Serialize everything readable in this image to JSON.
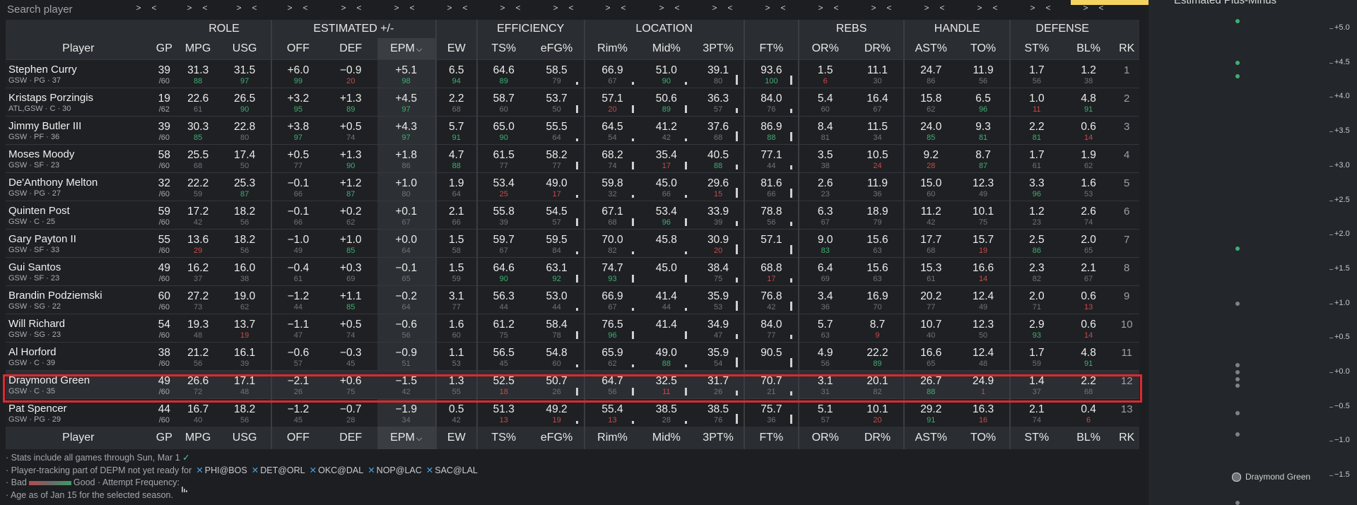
{
  "search": {
    "placeholder": "Search player"
  },
  "groups": {
    "role": "ROLE",
    "est": "ESTIMATED +/-",
    "eff": "EFFICIENCY",
    "loc": "LOCATION",
    "rebs": "REBS",
    "handle": "HANDLE",
    "def": "DEFENSE"
  },
  "headers": {
    "player": "Player",
    "gp": "GP",
    "mpg": "MPG",
    "usg": "USG",
    "off": "OFF",
    "def": "DEF",
    "epm": "EPM",
    "ew": "EW",
    "ts": "TS%",
    "efg": "eFG%",
    "rim": "Rim%",
    "mid": "Mid%",
    "three": "3PT%",
    "ft": "FT%",
    "or": "OR%",
    "dr": "DR%",
    "ast": "AST%",
    "to": "TO%",
    "st": "ST%",
    "bl": "BL%",
    "rk": "RK"
  },
  "sort_arrow": "⌵",
  "nav_arrows": [
    ">",
    "<"
  ],
  "colors": {
    "good": "#3fae72",
    "bad": "#c84a4a",
    "neutral": "#6f7478",
    "highlight": "#e0282e"
  },
  "players": [
    {
      "name": "Stephen Curry",
      "meta": "GSW · PG · 37",
      "gp": "39",
      "per": "/60",
      "mpg": [
        "31.3",
        "88",
        "g"
      ],
      "usg": [
        "31.5",
        "97",
        "g"
      ],
      "off": [
        "+6.0",
        "99",
        "g"
      ],
      "def": [
        "−0.9",
        "20",
        "b"
      ],
      "epm": [
        "+5.1",
        "98",
        "g"
      ],
      "ew": [
        "6.5",
        "94",
        "g"
      ],
      "ts": [
        "64.6",
        "89",
        "g"
      ],
      "efg": [
        "58.5",
        "79",
        "n"
      ],
      "rim": [
        "66.9",
        "67",
        "n"
      ],
      "mid": [
        "51.0",
        "90",
        "g"
      ],
      "three": [
        "39.1",
        "80",
        "n"
      ],
      "ft": [
        "93.6",
        "100",
        "g"
      ],
      "or": [
        "1.5",
        "6",
        "b"
      ],
      "dr": [
        "11.1",
        "30",
        "n"
      ],
      "ast": [
        "24.7",
        "86",
        "n"
      ],
      "to": [
        "11.9",
        "56",
        "n"
      ],
      "st": [
        "1.7",
        "56",
        "n"
      ],
      "bl": [
        "1.2",
        "38",
        "n"
      ],
      "rk": "1"
    },
    {
      "name": "Kristaps Porzingis",
      "meta": "ATL,GSW · C · 30",
      "gp": "19",
      "per": "/62",
      "mpg": [
        "22.6",
        "61",
        "n"
      ],
      "usg": [
        "26.5",
        "90",
        "g"
      ],
      "off": [
        "+3.2",
        "95",
        "g"
      ],
      "def": [
        "+1.3",
        "89",
        "g"
      ],
      "epm": [
        "+4.5",
        "97",
        "g"
      ],
      "ew": [
        "2.2",
        "68",
        "n"
      ],
      "ts": [
        "58.7",
        "60",
        "n"
      ],
      "efg": [
        "53.7",
        "50",
        "n"
      ],
      "rim": [
        "57.1",
        "20",
        "b"
      ],
      "mid": [
        "50.6",
        "89",
        "g"
      ],
      "three": [
        "36.3",
        "57",
        "n"
      ],
      "ft": [
        "84.0",
        "76",
        "n"
      ],
      "or": [
        "5.4",
        "60",
        "n"
      ],
      "dr": [
        "16.4",
        "67",
        "n"
      ],
      "ast": [
        "15.8",
        "62",
        "n"
      ],
      "to": [
        "6.5",
        "96",
        "g"
      ],
      "st": [
        "1.0",
        "11",
        "b"
      ],
      "bl": [
        "4.8",
        "91",
        "g"
      ],
      "rk": "2"
    },
    {
      "name": "Jimmy Butler III",
      "meta": "GSW · PF · 36",
      "gp": "39",
      "per": "/60",
      "mpg": [
        "30.3",
        "85",
        "g"
      ],
      "usg": [
        "22.8",
        "80",
        "n"
      ],
      "off": [
        "+3.8",
        "97",
        "g"
      ],
      "def": [
        "+0.5",
        "74",
        "n"
      ],
      "epm": [
        "+4.3",
        "97",
        "g"
      ],
      "ew": [
        "5.7",
        "91",
        "g"
      ],
      "ts": [
        "65.0",
        "90",
        "g"
      ],
      "efg": [
        "55.5",
        "64",
        "n"
      ],
      "rim": [
        "64.5",
        "54",
        "n"
      ],
      "mid": [
        "41.2",
        "42",
        "n"
      ],
      "three": [
        "37.6",
        "68",
        "n"
      ],
      "ft": [
        "86.9",
        "88",
        "g"
      ],
      "or": [
        "8.4",
        "81",
        "n"
      ],
      "dr": [
        "11.5",
        "34",
        "n"
      ],
      "ast": [
        "24.0",
        "85",
        "g"
      ],
      "to": [
        "9.3",
        "81",
        "g"
      ],
      "st": [
        "2.2",
        "81",
        "g"
      ],
      "bl": [
        "0.6",
        "14",
        "b"
      ],
      "rk": "3"
    },
    {
      "name": "Moses Moody",
      "meta": "GSW · SF · 23",
      "gp": "58",
      "per": "/60",
      "mpg": [
        "25.5",
        "68",
        "n"
      ],
      "usg": [
        "17.4",
        "50",
        "n"
      ],
      "off": [
        "+0.5",
        "77",
        "n"
      ],
      "def": [
        "+1.3",
        "90",
        "g"
      ],
      "epm": [
        "+1.8",
        "86",
        "n"
      ],
      "ew": [
        "4.7",
        "88",
        "g"
      ],
      "ts": [
        "61.5",
        "77",
        "n"
      ],
      "efg": [
        "58.2",
        "77",
        "n"
      ],
      "rim": [
        "68.2",
        "74",
        "n"
      ],
      "mid": [
        "35.4",
        "17",
        "b"
      ],
      "three": [
        "40.5",
        "88",
        "g"
      ],
      "ft": [
        "77.1",
        "44",
        "n"
      ],
      "or": [
        "3.5",
        "38",
        "n"
      ],
      "dr": [
        "10.5",
        "24",
        "b"
      ],
      "ast": [
        "9.2",
        "28",
        "b"
      ],
      "to": [
        "8.7",
        "87",
        "g"
      ],
      "st": [
        "1.7",
        "61",
        "n"
      ],
      "bl": [
        "1.9",
        "62",
        "n"
      ],
      "rk": "4"
    },
    {
      "name": "De'Anthony Melton",
      "meta": "GSW · PG · 27",
      "gp": "32",
      "per": "/60",
      "mpg": [
        "22.2",
        "59",
        "n"
      ],
      "usg": [
        "25.3",
        "87",
        "g"
      ],
      "off": [
        "−0.1",
        "66",
        "n"
      ],
      "def": [
        "+1.2",
        "87",
        "g"
      ],
      "epm": [
        "+1.0",
        "80",
        "n"
      ],
      "ew": [
        "1.9",
        "64",
        "n"
      ],
      "ts": [
        "53.4",
        "25",
        "b"
      ],
      "efg": [
        "49.0",
        "17",
        "b"
      ],
      "rim": [
        "59.8",
        "32",
        "n"
      ],
      "mid": [
        "45.0",
        "66",
        "n"
      ],
      "three": [
        "29.6",
        "15",
        "b"
      ],
      "ft": [
        "81.6",
        "66",
        "n"
      ],
      "or": [
        "2.6",
        "23",
        "n"
      ],
      "dr": [
        "11.9",
        "36",
        "n"
      ],
      "ast": [
        "15.0",
        "60",
        "n"
      ],
      "to": [
        "12.3",
        "49",
        "n"
      ],
      "st": [
        "3.3",
        "96",
        "g"
      ],
      "bl": [
        "1.6",
        "53",
        "n"
      ],
      "rk": "5"
    },
    {
      "name": "Quinten Post",
      "meta": "GSW · C · 25",
      "gp": "59",
      "per": "/60",
      "mpg": [
        "17.2",
        "42",
        "n"
      ],
      "usg": [
        "18.2",
        "56",
        "n"
      ],
      "off": [
        "−0.1",
        "66",
        "n"
      ],
      "def": [
        "+0.2",
        "62",
        "n"
      ],
      "epm": [
        "+0.1",
        "67",
        "n"
      ],
      "ew": [
        "2.1",
        "66",
        "n"
      ],
      "ts": [
        "55.8",
        "39",
        "n"
      ],
      "efg": [
        "54.5",
        "57",
        "n"
      ],
      "rim": [
        "67.1",
        "68",
        "n"
      ],
      "mid": [
        "53.4",
        "96",
        "g"
      ],
      "three": [
        "33.9",
        "39",
        "n"
      ],
      "ft": [
        "78.8",
        "56",
        "n"
      ],
      "or": [
        "6.3",
        "67",
        "n"
      ],
      "dr": [
        "18.9",
        "79",
        "n"
      ],
      "ast": [
        "11.2",
        "42",
        "n"
      ],
      "to": [
        "10.1",
        "75",
        "n"
      ],
      "st": [
        "1.2",
        "23",
        "n"
      ],
      "bl": [
        "2.6",
        "74",
        "n"
      ],
      "rk": "6"
    },
    {
      "name": "Gary Payton II",
      "meta": "GSW · SF · 33",
      "gp": "55",
      "per": "/60",
      "mpg": [
        "13.6",
        "29",
        "b"
      ],
      "usg": [
        "18.2",
        "56",
        "n"
      ],
      "off": [
        "−1.0",
        "49",
        "n"
      ],
      "def": [
        "+1.0",
        "85",
        "g"
      ],
      "epm": [
        "+0.0",
        "64",
        "n"
      ],
      "ew": [
        "1.5",
        "58",
        "n"
      ],
      "ts": [
        "59.7",
        "67",
        "n"
      ],
      "efg": [
        "59.5",
        "84",
        "n"
      ],
      "rim": [
        "70.0",
        "82",
        "n"
      ],
      "mid": [
        "45.8",
        "",
        "n"
      ],
      "three": [
        "30.9",
        "20",
        "b"
      ],
      "ft": [
        "57.1",
        "",
        "n"
      ],
      "or": [
        "9.0",
        "83",
        "g"
      ],
      "dr": [
        "15.6",
        "63",
        "n"
      ],
      "ast": [
        "17.7",
        "68",
        "n"
      ],
      "to": [
        "15.7",
        "19",
        "b"
      ],
      "st": [
        "2.5",
        "86",
        "g"
      ],
      "bl": [
        "2.0",
        "65",
        "n"
      ],
      "rk": "7"
    },
    {
      "name": "Gui Santos",
      "meta": "GSW · SF · 23",
      "gp": "49",
      "per": "/60",
      "mpg": [
        "16.2",
        "37",
        "n"
      ],
      "usg": [
        "16.0",
        "38",
        "n"
      ],
      "off": [
        "−0.4",
        "61",
        "n"
      ],
      "def": [
        "+0.3",
        "69",
        "n"
      ],
      "epm": [
        "−0.1",
        "65",
        "n"
      ],
      "ew": [
        "1.5",
        "59",
        "n"
      ],
      "ts": [
        "64.6",
        "90",
        "g"
      ],
      "efg": [
        "63.1",
        "92",
        "g"
      ],
      "rim": [
        "74.7",
        "93",
        "g"
      ],
      "mid": [
        "45.0",
        "",
        "n"
      ],
      "three": [
        "38.4",
        "75",
        "n"
      ],
      "ft": [
        "68.8",
        "17",
        "b"
      ],
      "or": [
        "6.4",
        "69",
        "n"
      ],
      "dr": [
        "15.6",
        "63",
        "n"
      ],
      "ast": [
        "15.3",
        "61",
        "n"
      ],
      "to": [
        "16.6",
        "14",
        "b"
      ],
      "st": [
        "2.3",
        "82",
        "n"
      ],
      "bl": [
        "2.1",
        "67",
        "n"
      ],
      "rk": "8"
    },
    {
      "name": "Brandin Podziemski",
      "meta": "GSW · SG · 22",
      "gp": "60",
      "per": "/60",
      "mpg": [
        "27.2",
        "73",
        "n"
      ],
      "usg": [
        "19.0",
        "62",
        "n"
      ],
      "off": [
        "−1.2",
        "44",
        "n"
      ],
      "def": [
        "+1.1",
        "85",
        "g"
      ],
      "epm": [
        "−0.2",
        "64",
        "n"
      ],
      "ew": [
        "3.1",
        "77",
        "n"
      ],
      "ts": [
        "56.3",
        "44",
        "n"
      ],
      "efg": [
        "53.0",
        "44",
        "n"
      ],
      "rim": [
        "66.9",
        "67",
        "n"
      ],
      "mid": [
        "41.4",
        "44",
        "n"
      ],
      "three": [
        "35.9",
        "53",
        "n"
      ],
      "ft": [
        "76.8",
        "42",
        "n"
      ],
      "or": [
        "3.4",
        "36",
        "n"
      ],
      "dr": [
        "16.9",
        "70",
        "n"
      ],
      "ast": [
        "20.2",
        "77",
        "n"
      ],
      "to": [
        "12.4",
        "49",
        "n"
      ],
      "st": [
        "2.0",
        "71",
        "n"
      ],
      "bl": [
        "0.6",
        "13",
        "b"
      ],
      "rk": "9"
    },
    {
      "name": "Will Richard",
      "meta": "GSW · SG · 23",
      "gp": "54",
      "per": "/60",
      "mpg": [
        "19.3",
        "48",
        "n"
      ],
      "usg": [
        "13.7",
        "19",
        "b"
      ],
      "off": [
        "−1.1",
        "47",
        "n"
      ],
      "def": [
        "+0.5",
        "74",
        "n"
      ],
      "epm": [
        "−0.6",
        "56",
        "n"
      ],
      "ew": [
        "1.6",
        "60",
        "n"
      ],
      "ts": [
        "61.2",
        "75",
        "n"
      ],
      "efg": [
        "58.4",
        "78",
        "n"
      ],
      "rim": [
        "76.5",
        "96",
        "g"
      ],
      "mid": [
        "41.4",
        "",
        "n"
      ],
      "three": [
        "34.9",
        "47",
        "n"
      ],
      "ft": [
        "84.0",
        "77",
        "n"
      ],
      "or": [
        "5.7",
        "63",
        "n"
      ],
      "dr": [
        "8.7",
        "9",
        "b"
      ],
      "ast": [
        "10.7",
        "40",
        "n"
      ],
      "to": [
        "12.3",
        "50",
        "n"
      ],
      "st": [
        "2.9",
        "93",
        "g"
      ],
      "bl": [
        "0.6",
        "14",
        "b"
      ],
      "rk": "10"
    },
    {
      "name": "Al Horford",
      "meta": "GSW · C · 39",
      "gp": "38",
      "per": "/60",
      "mpg": [
        "21.2",
        "56",
        "n"
      ],
      "usg": [
        "16.1",
        "39",
        "n"
      ],
      "off": [
        "−0.6",
        "57",
        "n"
      ],
      "def": [
        "−0.3",
        "45",
        "n"
      ],
      "epm": [
        "−0.9",
        "51",
        "n"
      ],
      "ew": [
        "1.1",
        "53",
        "n"
      ],
      "ts": [
        "56.5",
        "45",
        "n"
      ],
      "efg": [
        "54.8",
        "60",
        "n"
      ],
      "rim": [
        "65.9",
        "62",
        "n"
      ],
      "mid": [
        "49.0",
        "88",
        "g"
      ],
      "three": [
        "35.9",
        "54",
        "n"
      ],
      "ft": [
        "90.5",
        "",
        "n"
      ],
      "or": [
        "4.9",
        "56",
        "n"
      ],
      "dr": [
        "22.2",
        "89",
        "g"
      ],
      "ast": [
        "16.6",
        "65",
        "n"
      ],
      "to": [
        "12.4",
        "48",
        "n"
      ],
      "st": [
        "1.7",
        "59",
        "n"
      ],
      "bl": [
        "4.8",
        "91",
        "g"
      ],
      "rk": "11"
    },
    {
      "name": "Draymond Green",
      "meta": "GSW · C · 35",
      "gp": "49",
      "per": "/60",
      "mpg": [
        "26.6",
        "72",
        "n"
      ],
      "usg": [
        "17.1",
        "48",
        "n"
      ],
      "off": [
        "−2.1",
        "26",
        "n"
      ],
      "def": [
        "+0.6",
        "75",
        "n"
      ],
      "epm": [
        "−1.5",
        "42",
        "n"
      ],
      "ew": [
        "1.3",
        "55",
        "n"
      ],
      "ts": [
        "52.5",
        "18",
        "b"
      ],
      "efg": [
        "50.7",
        "26",
        "n"
      ],
      "rim": [
        "64.7",
        "56",
        "n"
      ],
      "mid": [
        "32.5",
        "11",
        "b"
      ],
      "three": [
        "31.7",
        "26",
        "n"
      ],
      "ft": [
        "70.7",
        "21",
        "n"
      ],
      "or": [
        "3.1",
        "31",
        "n"
      ],
      "dr": [
        "20.1",
        "82",
        "n"
      ],
      "ast": [
        "26.7",
        "88",
        "g"
      ],
      "to": [
        "24.9",
        "1",
        "b"
      ],
      "st": [
        "1.4",
        "37",
        "n"
      ],
      "bl": [
        "2.2",
        "68",
        "n"
      ],
      "rk": "12",
      "highlight": true
    },
    {
      "name": "Pat Spencer",
      "meta": "GSW · PG · 29",
      "gp": "44",
      "per": "/60",
      "mpg": [
        "16.7",
        "40",
        "n"
      ],
      "usg": [
        "18.2",
        "56",
        "n"
      ],
      "off": [
        "−1.2",
        "45",
        "n"
      ],
      "def": [
        "−0.7",
        "28",
        "n"
      ],
      "epm": [
        "−1.9",
        "34",
        "n"
      ],
      "ew": [
        "0.5",
        "42",
        "n"
      ],
      "ts": [
        "51.3",
        "13",
        "b"
      ],
      "efg": [
        "49.2",
        "19",
        "b"
      ],
      "rim": [
        "55.4",
        "13",
        "b"
      ],
      "mid": [
        "38.5",
        "28",
        "n"
      ],
      "three": [
        "38.5",
        "76",
        "n"
      ],
      "ft": [
        "75.7",
        "36",
        "n"
      ],
      "or": [
        "5.1",
        "57",
        "n"
      ],
      "dr": [
        "10.1",
        "20",
        "b"
      ],
      "ast": [
        "29.2",
        "91",
        "g"
      ],
      "to": [
        "16.3",
        "16",
        "b"
      ],
      "st": [
        "2.1",
        "74",
        "n"
      ],
      "bl": [
        "0.4",
        "6",
        "b"
      ],
      "rk": "13"
    }
  ],
  "notes": {
    "n1": "· Stats include all games through Sun, Mar 1",
    "n1check": "✓",
    "n2": "· Player-tracking part of DEPM not yet ready for",
    "games": [
      "PHI@BOS",
      "DET@ORL",
      "OKC@DAL",
      "NOP@LAC",
      "SAC@LAL"
    ],
    "n3a": "· Bad",
    "n3b": "Good · Attempt Frequency:",
    "n4": "· Age as of Jan 15 for the selected season."
  },
  "side": {
    "title": "Estimated Plus-Minus",
    "axis": [
      "+5.0",
      "+4.5",
      "+4.0",
      "+3.5",
      "+3.0",
      "+2.5",
      "+2.0",
      "+1.5",
      "+1.0",
      "+0.5",
      "+0.0",
      "−0.5",
      "−1.0",
      "−1.5"
    ],
    "legend": "Draymond Green"
  }
}
